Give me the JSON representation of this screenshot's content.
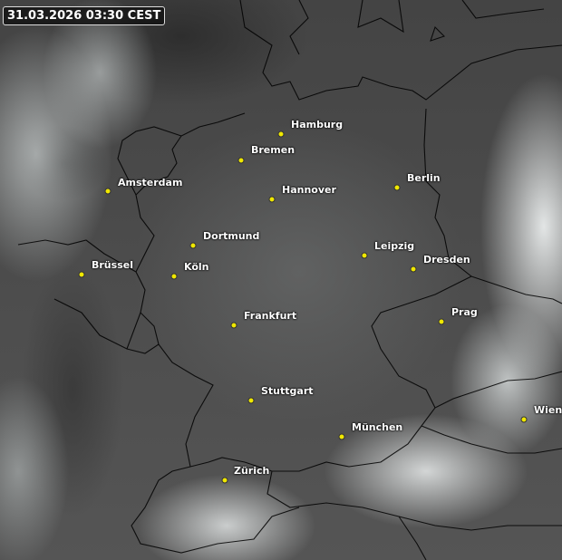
{
  "timestamp": "31.03.2026 03:30 CEST",
  "colors": {
    "city_dot": "#f0e800",
    "label": "#ffffff",
    "border": "#000000"
  },
  "cities": [
    {
      "name": "Hamburg"
    },
    {
      "name": "Bremen"
    },
    {
      "name": "Amsterdam"
    },
    {
      "name": "Hannover"
    },
    {
      "name": "Berlin"
    },
    {
      "name": "Dortmund"
    },
    {
      "name": "Leipzig"
    },
    {
      "name": "Dresden"
    },
    {
      "name": "Brüssel"
    },
    {
      "name": "Köln"
    },
    {
      "name": "Prag"
    },
    {
      "name": "Frankfurt"
    },
    {
      "name": "Stuttgart"
    },
    {
      "name": "München"
    },
    {
      "name": "Wien"
    },
    {
      "name": "Zürich"
    }
  ]
}
